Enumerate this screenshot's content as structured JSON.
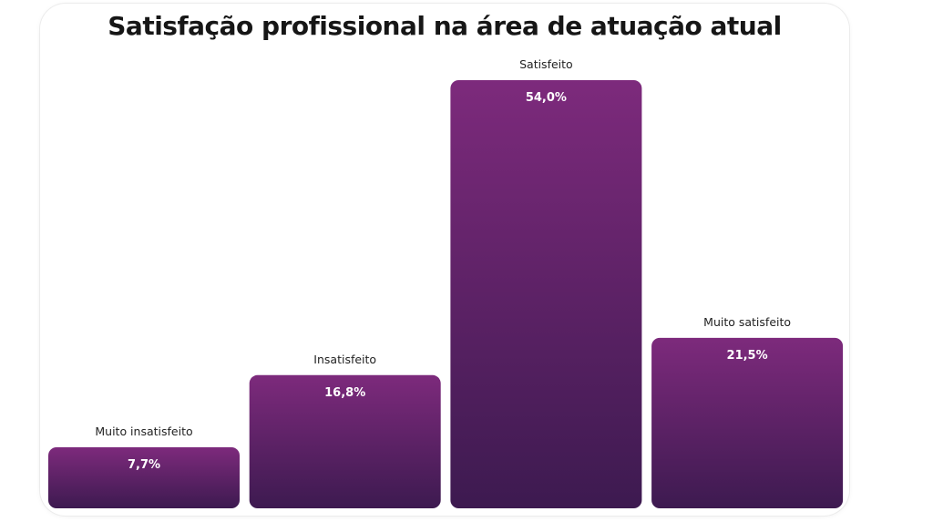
{
  "colors": {
    "bar_top": "#7d2a7c",
    "bar_bottom": "#3d1a50",
    "value_label": "#ffffff",
    "category_label": "#222222",
    "title": "#161616"
  },
  "chart_data": {
    "type": "bar",
    "title": "Satisfação profissional na área de atuação atual",
    "xlabel": "",
    "ylabel": "",
    "categories": [
      "Muito insatisfeito",
      "Insatisfeito",
      "Satisfeito",
      "Muito satisfeito"
    ],
    "values": [
      7.7,
      16.8,
      54.0,
      21.5
    ],
    "value_labels": [
      "7,7%",
      "16,8%",
      "54,0%",
      "21,5%"
    ],
    "unit": "%",
    "grid": false,
    "legend": "none"
  }
}
